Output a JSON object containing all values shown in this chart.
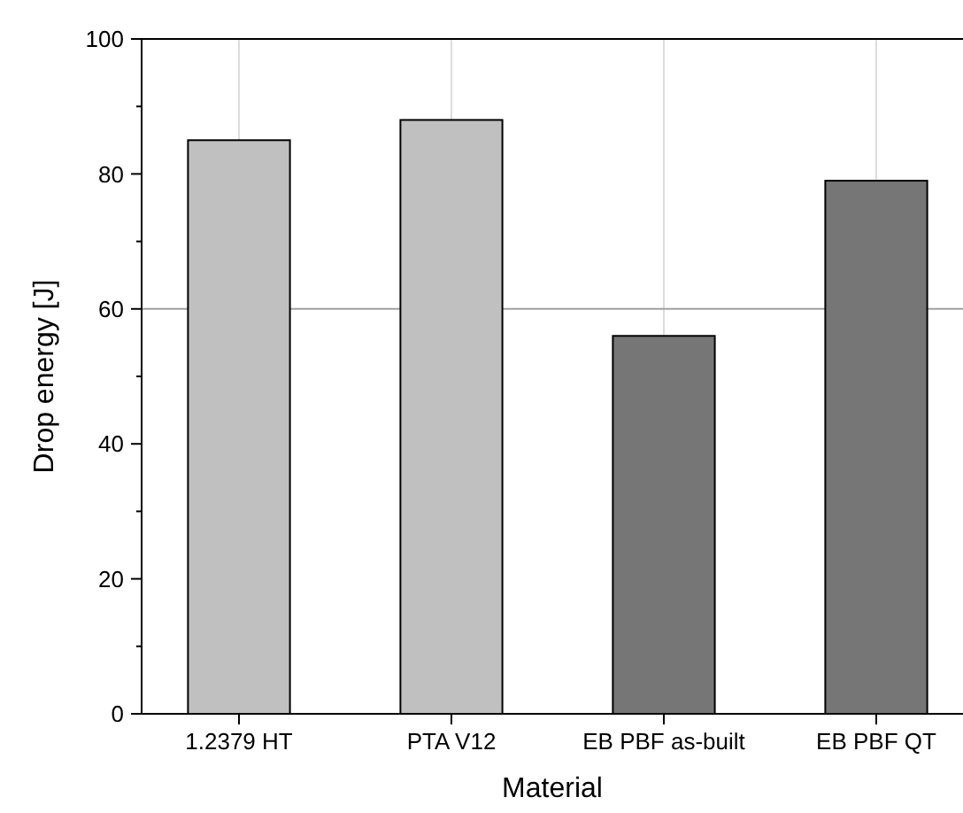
{
  "chart_data": {
    "type": "bar",
    "xlabel": "Material",
    "ylabel": "Drop energy [J]",
    "categories": [
      "1.2379 HT",
      "PTA V12",
      "EB PBF as-built",
      "EB PBF QT"
    ],
    "values": [
      85,
      88,
      56,
      79
    ],
    "colors": [
      "#c0c0c0",
      "#c0c0c0",
      "#767676",
      "#767676"
    ],
    "ylim": [
      0,
      100
    ],
    "yticks": [
      0,
      {
        "value": 10,
        "label": null
      },
      20,
      {
        "value": 30,
        "label": null
      },
      40,
      {
        "value": 50,
        "label": null
      },
      60,
      {
        "value": 70,
        "label": null
      },
      80,
      {
        "value": 90,
        "label": null
      },
      100
    ],
    "grid": "x",
    "ref_lines": [
      {
        "axis": "y",
        "value": 60,
        "label": null,
        "color": "#a0a0a0"
      }
    ]
  }
}
